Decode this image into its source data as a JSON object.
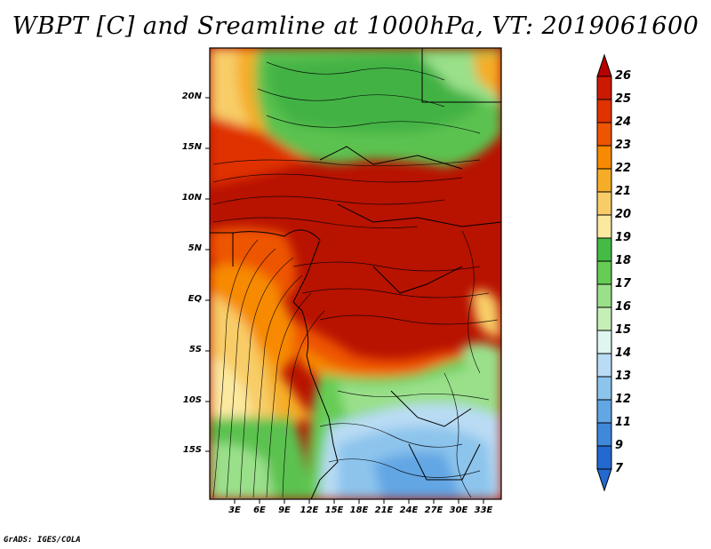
{
  "title": "WBPT [C] and Sreamline at 1000hPa, VT: 2019061600",
  "credit": "GrADS: IGES/COLA",
  "axes": {
    "lat_labels": [
      "20N",
      "15N",
      "10N",
      "5N",
      "EQ",
      "5S",
      "10S",
      "15S"
    ],
    "lon_labels": [
      "3E",
      "6E",
      "9E",
      "12E",
      "15E",
      "18E",
      "21E",
      "24E",
      "27E",
      "30E",
      "33E"
    ]
  },
  "colorbar": {
    "labels": [
      "26",
      "25",
      "24",
      "23",
      "22",
      "21",
      "20",
      "19",
      "18",
      "17",
      "16",
      "15",
      "14",
      "13",
      "12",
      "11",
      "9",
      "7"
    ],
    "colors": [
      "#b40000",
      "#cc1a00",
      "#e03300",
      "#ee5500",
      "#f78a00",
      "#f5ad28",
      "#f8cd68",
      "#fbe9a0",
      "#44bb44",
      "#66cc55",
      "#9ae08a",
      "#c4efb6",
      "#def5f0",
      "#b9dcf4",
      "#8cc4ec",
      "#62a6e4",
      "#3f88da",
      "#2469d0"
    ]
  }
}
